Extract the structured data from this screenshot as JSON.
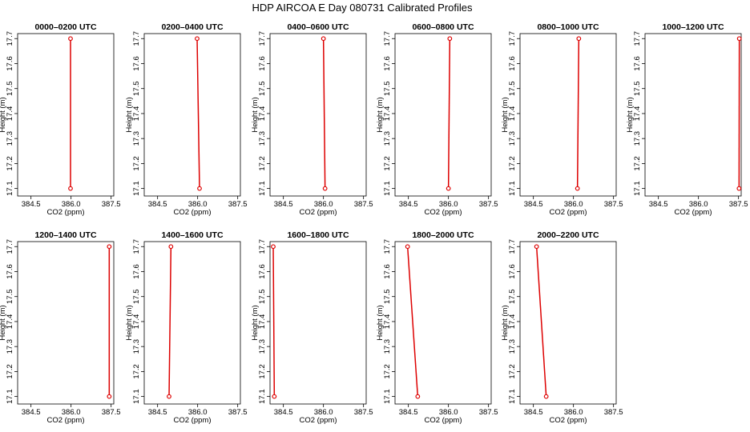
{
  "title": "HDP AIRCOA E  Day 080731  Calibrated Profiles",
  "chart_data": {
    "type": "line",
    "xlabel": "CO2 (ppm)",
    "ylabel": "Height (m)",
    "xlim": [
      384.0,
      387.6
    ],
    "ylim": [
      17.07,
      17.72
    ],
    "x_ticks": [
      "384.5",
      "386.0",
      "387.5"
    ],
    "y_ticks": [
      "17.1",
      "17.2",
      "17.3",
      "17.4",
      "17.5",
      "17.6",
      "17.7"
    ],
    "color": "#dd0000",
    "panels": [
      {
        "title": "0000–0200 UTC",
        "points": [
          {
            "x": 385.98,
            "y": 17.1
          },
          {
            "x": 385.98,
            "y": 17.7
          }
        ]
      },
      {
        "title": "0200–0400 UTC",
        "points": [
          {
            "x": 386.07,
            "y": 17.1
          },
          {
            "x": 385.98,
            "y": 17.7
          }
        ]
      },
      {
        "title": "0400–0600 UTC",
        "points": [
          {
            "x": 386.06,
            "y": 17.1
          },
          {
            "x": 386.0,
            "y": 17.7
          }
        ]
      },
      {
        "title": "0600–0800 UTC",
        "points": [
          {
            "x": 386.0,
            "y": 17.1
          },
          {
            "x": 386.05,
            "y": 17.7
          }
        ]
      },
      {
        "title": "0800–1000 UTC",
        "points": [
          {
            "x": 386.15,
            "y": 17.1
          },
          {
            "x": 386.2,
            "y": 17.7
          }
        ]
      },
      {
        "title": "1000–1200 UTC",
        "points": [
          {
            "x": 387.52,
            "y": 17.1
          },
          {
            "x": 387.53,
            "y": 17.7
          }
        ]
      },
      {
        "title": "1200–1400 UTC",
        "points": [
          {
            "x": 387.43,
            "y": 17.1
          },
          {
            "x": 387.43,
            "y": 17.7
          }
        ]
      },
      {
        "title": "1400–1600 UTC",
        "points": [
          {
            "x": 384.93,
            "y": 17.1
          },
          {
            "x": 385.0,
            "y": 17.7
          }
        ]
      },
      {
        "title": "1600–1800 UTC",
        "points": [
          {
            "x": 384.16,
            "y": 17.1
          },
          {
            "x": 384.12,
            "y": 17.7
          }
        ]
      },
      {
        "title": "1800–2000 UTC",
        "points": [
          {
            "x": 384.85,
            "y": 17.1
          },
          {
            "x": 384.47,
            "y": 17.7
          }
        ]
      },
      {
        "title": "2000–2200 UTC",
        "points": [
          {
            "x": 384.98,
            "y": 17.1
          },
          {
            "x": 384.62,
            "y": 17.7
          }
        ]
      }
    ]
  }
}
